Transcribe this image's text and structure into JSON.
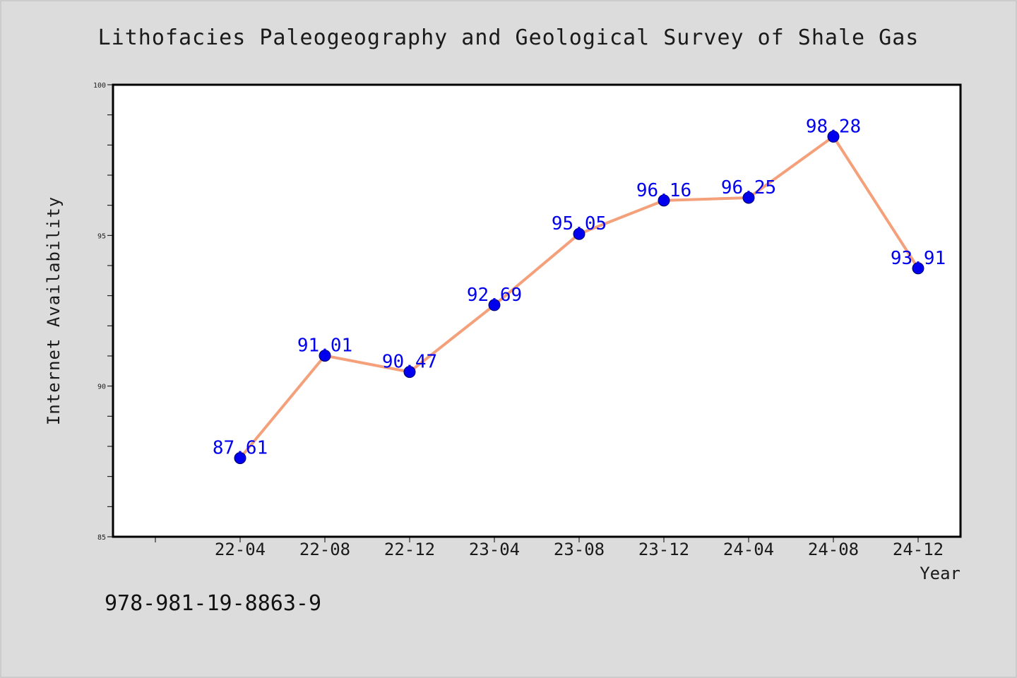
{
  "chart_data": {
    "type": "line",
    "title": "Lithofacies Paleogeography and Geological Survey of Shale Gas",
    "xlabel": "Year",
    "ylabel": "Internet Availability",
    "categories": [
      "22-04",
      "22-08",
      "22-12",
      "23-04",
      "23-08",
      "23-12",
      "24-04",
      "24-08",
      "24-12"
    ],
    "series": [
      {
        "values": [
          87.61,
          91.01,
          90.47,
          92.69,
          95.05,
          96.16,
          96.25,
          98.28,
          93.91
        ],
        "labels": [
          "87.61",
          "91.01",
          "90.47",
          "92.69",
          "95.05",
          "96.16",
          "96.25",
          "98.28",
          "93.91"
        ]
      }
    ],
    "ylim": [
      85,
      100
    ],
    "yticks": [
      85,
      90,
      95,
      100
    ],
    "yticks_labels": [
      "85",
      "90",
      "95",
      "100"
    ],
    "grid": false,
    "legend": "none",
    "colors": {
      "line": "#f4a07a",
      "marker": "#0000ee",
      "label": "#0000ee",
      "background": "#dcdcdc",
      "plot_area": "#ffffff"
    }
  },
  "footer": {
    "isbn": "978-981-19-8863-9"
  }
}
